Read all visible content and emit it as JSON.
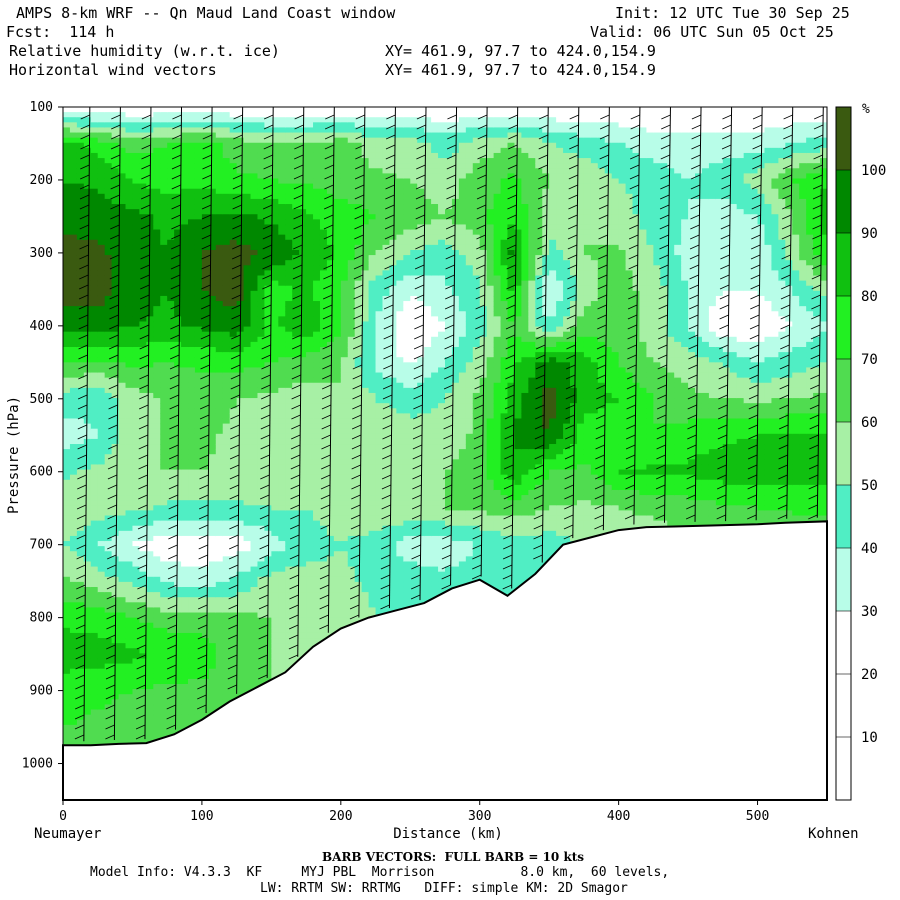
{
  "header": {
    "title": "AMPS 8-km WRF -- Qn Maud Land Coast window",
    "fcst": "Fcst:  114 h",
    "init": "Init: 12 UTC Tue 30 Sep 25",
    "valid": "Valid: 06 UTC Sun 05 Oct 25",
    "field1": "Relative humidity (w.r.t. ice)",
    "field2": "Horizontal wind vectors",
    "xy1": "XY= 461.9, 97.7 to 424.0,154.9",
    "xy2": "XY= 461.9, 97.7 to 424.0,154.9"
  },
  "footer": {
    "barb": "BARB VECTORS:  FULL BARB = 10 kts",
    "model1": "Model Info: V4.3.3  KF     MYJ PBL  Morrison           8.0 km,  60 levels,",
    "model2": "LW: RRTM SW: RRTMG   DIFF: simple KM: 2D Smagor"
  },
  "chart_data": {
    "type": "heatmap",
    "title": "Relative humidity (w.r.t. ice) cross-section with horizontal wind barbs",
    "xlabel": "Distance (km)",
    "ylabel": "Pressure (hPa)",
    "xlim": [
      0,
      550
    ],
    "ylim": [
      1050,
      100
    ],
    "xticks": [
      0,
      100,
      200,
      300,
      400,
      500
    ],
    "yticks": [
      100,
      200,
      300,
      400,
      500,
      600,
      700,
      800,
      900,
      1000
    ],
    "left_endpoint": "Neumayer",
    "right_endpoint": "Kohnen",
    "colorbar": {
      "unit": "%",
      "ticks": [
        10,
        20,
        30,
        40,
        50,
        60,
        70,
        80,
        90,
        100
      ],
      "bins": [
        {
          "from": 0,
          "to": 30,
          "color": "#ffffff"
        },
        {
          "from": 30,
          "to": 40,
          "color": "#b8fde8"
        },
        {
          "from": 40,
          "to": 50,
          "color": "#50eec4"
        },
        {
          "from": 50,
          "to": 60,
          "color": "#a7f0a5"
        },
        {
          "from": 60,
          "to": 70,
          "color": "#50dc50"
        },
        {
          "from": 70,
          "to": 80,
          "color": "#22f022"
        },
        {
          "from": 80,
          "to": 90,
          "color": "#10c010"
        },
        {
          "from": 90,
          "to": 100,
          "color": "#008800"
        },
        {
          "from": 100,
          "to": 110,
          "color": "#3a5a10"
        }
      ]
    },
    "terrain_pressure": {
      "x": [
        0,
        20,
        40,
        60,
        80,
        100,
        120,
        140,
        160,
        180,
        200,
        220,
        240,
        260,
        280,
        300,
        320,
        340,
        360,
        380,
        400,
        420,
        440,
        460,
        480,
        500,
        520,
        550
      ],
      "p": [
        975,
        975,
        973,
        972,
        960,
        940,
        915,
        895,
        875,
        840,
        815,
        800,
        790,
        780,
        760,
        748,
        770,
        740,
        700,
        690,
        680,
        676,
        675,
        674,
        673,
        672,
        670,
        668
      ]
    },
    "rh_field": {
      "x": [
        0,
        25,
        50,
        75,
        100,
        125,
        150,
        175,
        200,
        225,
        250,
        275,
        300,
        325,
        350,
        375,
        400,
        425,
        450,
        475,
        500,
        525,
        550
      ],
      "p": [
        100,
        150,
        200,
        250,
        300,
        350,
        400,
        450,
        500,
        550,
        600,
        650,
        700,
        750,
        800,
        850,
        900,
        950,
        1000
      ],
      "values": [
        [
          20,
          20,
          20,
          20,
          20,
          20,
          20,
          20,
          20,
          20,
          20,
          20,
          20,
          20,
          20,
          20,
          20,
          20,
          20,
          20,
          20,
          20,
          20
        ],
        [
          85,
          75,
          65,
          70,
          75,
          65,
          60,
          60,
          65,
          55,
          55,
          45,
          55,
          60,
          50,
          45,
          40,
          35,
          35,
          35,
          35,
          40,
          45
        ],
        [
          90,
          88,
          80,
          75,
          78,
          72,
          70,
          68,
          65,
          62,
          60,
          55,
          65,
          72,
          60,
          58,
          50,
          45,
          40,
          45,
          55,
          70,
          80
        ],
        [
          95,
          95,
          92,
          88,
          90,
          92,
          88,
          82,
          75,
          70,
          65,
          60,
          68,
          78,
          55,
          60,
          55,
          45,
          40,
          35,
          40,
          60,
          85
        ],
        [
          105,
          102,
          95,
          90,
          100,
          104,
          98,
          88,
          78,
          60,
          50,
          45,
          55,
          95,
          45,
          60,
          62,
          50,
          35,
          30,
          32,
          55,
          80
        ],
        [
          104,
          105,
          95,
          90,
          100,
          105,
          75,
          82,
          70,
          45,
          32,
          38,
          48,
          85,
          28,
          55,
          65,
          55,
          40,
          30,
          30,
          40,
          55
        ],
        [
          95,
          95,
          90,
          88,
          92,
          96,
          78,
          88,
          72,
          40,
          20,
          30,
          45,
          70,
          40,
          65,
          65,
          55,
          40,
          20,
          22,
          30,
          40
        ],
        [
          70,
          68,
          72,
          70,
          72,
          74,
          70,
          65,
          60,
          38,
          28,
          40,
          55,
          78,
          95,
          85,
          70,
          60,
          55,
          50,
          40,
          45,
          50
        ],
        [
          45,
          42,
          55,
          62,
          65,
          60,
          58,
          55,
          60,
          50,
          45,
          50,
          62,
          85,
          105,
          85,
          80,
          70,
          62,
          60,
          58,
          60,
          62
        ],
        [
          35,
          40,
          55,
          62,
          62,
          58,
          55,
          52,
          58,
          58,
          55,
          55,
          62,
          92,
          100,
          75,
          70,
          70,
          75,
          78,
          80,
          82,
          82
        ],
        [
          48,
          52,
          60,
          60,
          60,
          58,
          58,
          58,
          60,
          60,
          58,
          60,
          65,
          88,
          70,
          68,
          80,
          82,
          82,
          85,
          85,
          85,
          82
        ],
        [
          58,
          56,
          52,
          48,
          48,
          48,
          50,
          50,
          55,
          60,
          58,
          60,
          62,
          66,
          60,
          58,
          60,
          62,
          65,
          68,
          70,
          72,
          75
        ],
        [
          50,
          40,
          30,
          22,
          22,
          25,
          35,
          45,
          50,
          45,
          35,
          35,
          40,
          45,
          45,
          50,
          55,
          55,
          55,
          55,
          55,
          55,
          55
        ],
        [
          62,
          55,
          48,
          38,
          35,
          42,
          55,
          55,
          52,
          48,
          45,
          42,
          45,
          45,
          40,
          40,
          40,
          40,
          40,
          40,
          40,
          40,
          40
        ],
        [
          78,
          75,
          70,
          65,
          65,
          62,
          60,
          58,
          55,
          50,
          48,
          45,
          45,
          45,
          40,
          40,
          40,
          40,
          40,
          40,
          40,
          40,
          40
        ],
        [
          85,
          85,
          82,
          78,
          75,
          65,
          60,
          58,
          55,
          50,
          48,
          45,
          45,
          45,
          40,
          40,
          40,
          40,
          40,
          40,
          40,
          40,
          40
        ],
        [
          75,
          72,
          70,
          68,
          68,
          65,
          60,
          58,
          55,
          50,
          48,
          45,
          45,
          45,
          40,
          40,
          40,
          40,
          40,
          40,
          40,
          40,
          40
        ],
        [
          70,
          68,
          66,
          64,
          62,
          60,
          58,
          56,
          55,
          50,
          48,
          45,
          45,
          45,
          40,
          40,
          40,
          40,
          40,
          40,
          40,
          40,
          40
        ],
        [
          70,
          68,
          66,
          64,
          62,
          60,
          58,
          56,
          55,
          50,
          48,
          45,
          45,
          45,
          40,
          40,
          40,
          40,
          40,
          40,
          40,
          40,
          40
        ]
      ]
    }
  }
}
